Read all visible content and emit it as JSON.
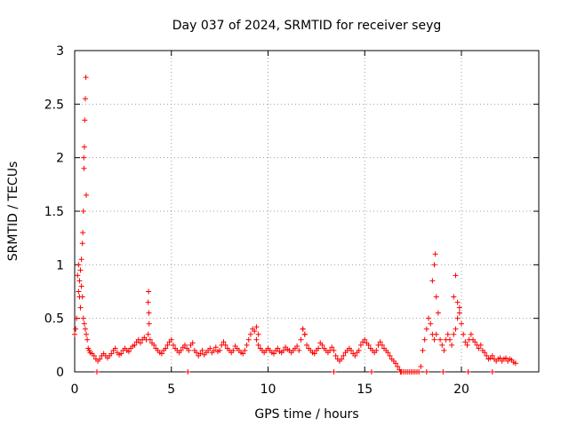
{
  "chart_data": {
    "type": "scatter",
    "title": "Day 037 of 2024, SRMTID for receiver seyg",
    "xlabel": "GPS time / hours",
    "ylabel": "SRMTID / TECUs",
    "xlim": [
      0,
      24
    ],
    "ylim": [
      0,
      3
    ],
    "xticks": [
      0,
      5,
      10,
      15,
      20
    ],
    "xtick_labels": [
      "0",
      "5",
      "10",
      "15",
      "20"
    ],
    "yticks": [
      0,
      0.5,
      1,
      1.5,
      2,
      2.5,
      3
    ],
    "ytick_labels": [
      "0",
      "0.5",
      "1",
      "1.5",
      "2",
      "2.5",
      "3"
    ],
    "grid": true,
    "marker": "+",
    "series_color": "#ff0000",
    "series": [
      {
        "name": "SRMTID",
        "x": [
          0.0,
          0.05,
          0.1,
          0.15,
          0.2,
          0.25,
          0.3,
          0.35,
          0.4,
          0.45,
          0.5,
          0.55,
          0.6,
          0.65,
          0.7,
          0.75,
          0.8,
          0.9,
          1.0,
          1.1,
          1.2,
          1.3,
          1.4,
          1.5,
          1.6,
          1.7,
          1.8,
          1.9,
          2.0,
          2.1,
          2.2,
          2.3,
          2.4,
          2.5,
          2.6,
          2.7,
          2.8,
          2.9,
          3.0,
          3.1,
          3.2,
          3.3,
          3.4,
          3.5,
          3.6,
          3.7,
          3.8,
          3.85,
          3.9,
          4.0,
          4.1,
          4.2,
          4.3,
          4.4,
          4.5,
          4.6,
          4.7,
          4.8,
          4.9,
          5.0,
          5.1,
          5.2,
          5.3,
          5.4,
          5.5,
          5.6,
          5.7,
          5.8,
          5.9,
          6.0,
          6.1,
          6.2,
          6.3,
          6.4,
          6.5,
          6.6,
          6.7,
          6.8,
          6.9,
          7.0,
          7.1,
          7.2,
          7.3,
          7.4,
          7.5,
          7.6,
          7.7,
          7.8,
          7.9,
          8.0,
          8.1,
          8.2,
          8.3,
          8.4,
          8.5,
          8.6,
          8.7,
          8.8,
          8.9,
          9.0,
          9.1,
          9.2,
          9.3,
          9.4,
          9.5,
          9.6,
          9.7,
          9.8,
          9.9,
          10.0,
          10.1,
          10.2,
          10.3,
          10.4,
          10.5,
          10.6,
          10.7,
          10.8,
          10.9,
          11.0,
          11.1,
          11.2,
          11.3,
          11.4,
          11.5,
          11.6,
          11.7,
          11.8,
          11.9,
          12.0,
          12.1,
          12.2,
          12.3,
          12.4,
          12.5,
          12.6,
          12.7,
          12.8,
          12.9,
          13.0,
          13.1,
          13.2,
          13.3,
          13.4,
          13.5,
          13.6,
          13.7,
          13.8,
          13.9,
          14.0,
          14.1,
          14.2,
          14.3,
          14.4,
          14.5,
          14.6,
          14.7,
          14.8,
          14.9,
          15.0,
          15.1,
          15.2,
          15.3,
          15.4,
          15.5,
          15.6,
          15.7,
          15.8,
          15.9,
          16.0,
          16.1,
          16.2,
          16.3,
          16.4,
          16.5,
          16.6,
          16.7,
          16.8,
          16.9,
          17.0,
          17.1,
          17.2,
          17.3,
          17.4,
          17.5,
          17.6,
          17.7,
          17.8,
          17.9,
          18.0,
          18.1,
          18.2,
          18.3,
          18.4,
          18.5,
          18.6,
          18.7,
          18.8,
          18.9,
          19.0,
          19.1,
          19.2,
          19.3,
          19.4,
          19.5,
          19.6,
          19.7,
          19.8,
          19.9,
          20.0,
          20.1,
          20.2,
          20.3,
          20.4,
          20.5,
          20.6,
          20.7,
          20.8,
          20.9,
          21.0,
          21.1,
          21.2,
          21.3,
          21.4,
          21.5,
          21.6,
          21.7,
          21.8,
          21.9,
          22.0,
          22.1,
          22.2,
          22.3,
          22.4,
          22.5,
          22.6,
          22.7,
          22.8,
          0.45,
          0.48,
          0.5,
          0.52,
          0.55,
          0.58,
          0.6,
          0.4,
          0.42,
          0.47,
          0.3,
          0.35,
          0.25,
          0.2,
          3.8,
          3.82,
          3.84,
          18.5,
          18.6,
          18.65,
          18.7,
          19.6,
          19.7,
          19.8,
          19.9,
          9.4,
          9.5,
          11.8,
          11.9,
          1.15,
          5.85,
          13.4,
          15.35,
          16.85,
          18.2,
          19.05,
          20.35,
          21.6
        ],
        "y": [
          0.35,
          0.4,
          0.5,
          0.9,
          1.0,
          0.7,
          0.6,
          0.8,
          0.7,
          0.5,
          0.45,
          0.4,
          0.35,
          0.3,
          0.22,
          0.2,
          0.18,
          0.17,
          0.15,
          0.12,
          0.1,
          0.12,
          0.15,
          0.17,
          0.15,
          0.13,
          0.15,
          0.17,
          0.2,
          0.22,
          0.18,
          0.16,
          0.17,
          0.2,
          0.22,
          0.2,
          0.19,
          0.22,
          0.24,
          0.25,
          0.28,
          0.3,
          0.27,
          0.3,
          0.32,
          0.3,
          0.35,
          0.45,
          0.3,
          0.27,
          0.25,
          0.22,
          0.2,
          0.18,
          0.17,
          0.2,
          0.22,
          0.25,
          0.28,
          0.3,
          0.25,
          0.22,
          0.2,
          0.18,
          0.2,
          0.23,
          0.25,
          0.22,
          0.2,
          0.25,
          0.27,
          0.2,
          0.18,
          0.15,
          0.17,
          0.2,
          0.16,
          0.18,
          0.2,
          0.22,
          0.18,
          0.2,
          0.23,
          0.19,
          0.2,
          0.25,
          0.28,
          0.25,
          0.22,
          0.2,
          0.18,
          0.2,
          0.24,
          0.22,
          0.2,
          0.18,
          0.17,
          0.2,
          0.25,
          0.3,
          0.35,
          0.4,
          0.38,
          0.3,
          0.25,
          0.22,
          0.2,
          0.18,
          0.2,
          0.22,
          0.2,
          0.18,
          0.17,
          0.2,
          0.22,
          0.19,
          0.18,
          0.2,
          0.23,
          0.21,
          0.2,
          0.18,
          0.2,
          0.22,
          0.24,
          0.2,
          0.3,
          0.4,
          0.35,
          0.25,
          0.22,
          0.2,
          0.18,
          0.17,
          0.2,
          0.22,
          0.27,
          0.25,
          0.22,
          0.2,
          0.18,
          0.2,
          0.23,
          0.2,
          0.15,
          0.12,
          0.1,
          0.12,
          0.15,
          0.18,
          0.2,
          0.22,
          0.2,
          0.17,
          0.15,
          0.18,
          0.2,
          0.25,
          0.28,
          0.3,
          0.27,
          0.25,
          0.22,
          0.2,
          0.18,
          0.2,
          0.25,
          0.28,
          0.25,
          0.22,
          0.2,
          0.18,
          0.15,
          0.12,
          0.1,
          0.08,
          0.05,
          0.02,
          0.0,
          0.0,
          0.0,
          0.0,
          0.0,
          0.0,
          0.0,
          0.0,
          0.0,
          0.0,
          0.05,
          0.2,
          0.3,
          0.4,
          0.5,
          0.45,
          0.35,
          0.3,
          0.35,
          0.55,
          0.3,
          0.25,
          0.2,
          0.3,
          0.35,
          0.3,
          0.25,
          0.35,
          0.4,
          0.5,
          0.6,
          0.45,
          0.35,
          0.28,
          0.25,
          0.3,
          0.35,
          0.3,
          0.28,
          0.25,
          0.22,
          0.25,
          0.2,
          0.18,
          0.15,
          0.12,
          0.13,
          0.15,
          0.12,
          0.1,
          0.12,
          0.13,
          0.1,
          0.12,
          0.13,
          0.1,
          0.12,
          0.11,
          0.09,
          0.08,
          1.5,
          1.9,
          2.1,
          2.35,
          2.55,
          2.75,
          1.65,
          1.2,
          1.3,
          2.0,
          0.95,
          1.05,
          0.85,
          0.75,
          0.65,
          0.75,
          0.55,
          0.85,
          1.0,
          1.1,
          0.7,
          0.7,
          0.9,
          0.65,
          0.55,
          0.42,
          0.35,
          0.4,
          0.35,
          0.0,
          0.0,
          0.0,
          0.0,
          0.0,
          0.0,
          0.0,
          0.0,
          0.0
        ]
      }
    ]
  }
}
